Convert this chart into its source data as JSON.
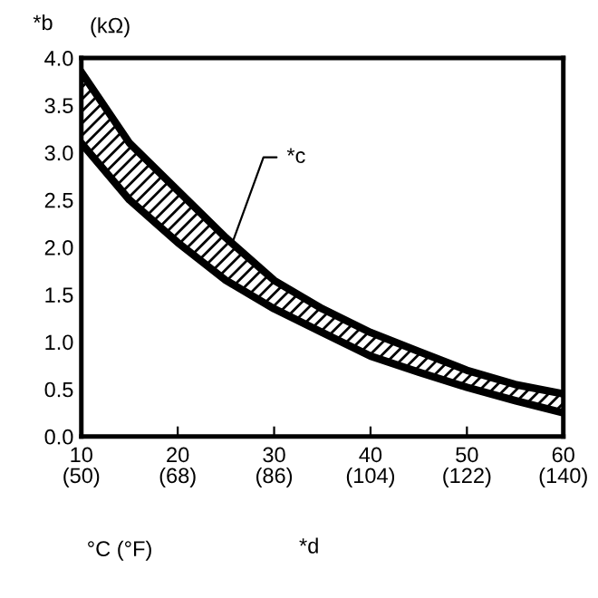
{
  "chart_data": {
    "type": "line",
    "x": [
      10,
      15,
      20,
      25,
      30,
      35,
      40,
      45,
      50,
      55,
      60
    ],
    "series": [
      {
        "color": "#000000",
        "values": [
          3.85,
          3.1,
          2.6,
          2.1,
          1.65,
          1.35,
          1.1,
          0.9,
          0.7,
          0.55,
          0.45
        ],
        "lower": [
          3.1,
          2.5,
          2.05,
          1.65,
          1.35,
          1.1,
          0.85,
          0.68,
          0.52,
          0.38,
          0.25
        ],
        "upper": [
          3.85,
          3.1,
          2.6,
          2.1,
          1.65,
          1.35,
          1.1,
          0.9,
          0.7,
          0.55,
          0.45
        ]
      },
      {
        "color": "#000000",
        "values": [
          3.1,
          2.5,
          2.05,
          1.65,
          1.35,
          1.1,
          0.85,
          0.68,
          0.52,
          0.38,
          0.25
        ]
      }
    ],
    "xlabel": "°C (°F)",
    "ylabel": "(kΩ)",
    "annotations": [
      "*b",
      {
        "text": "*c",
        "x": 25.5,
        "y": 2.0
      },
      "*d"
    ],
    "xlim": [
      10,
      60
    ],
    "ylim": [
      0,
      4.0
    ],
    "xticks": [
      10,
      20,
      30,
      40,
      50,
      60
    ],
    "x2lim": [
      50,
      140
    ],
    "x2ticks": [
      {
        "value": 50,
        "label": "(50)"
      },
      {
        "value": 68,
        "label": "(68)"
      },
      {
        "value": 86,
        "label": "(86)"
      },
      {
        "value": 104,
        "label": "(104)"
      },
      {
        "value": 122,
        "label": "(122)"
      },
      {
        "value": 140,
        "label": "(140)"
      }
    ],
    "yticks": [
      {
        "value": 0,
        "label": "0.0"
      },
      {
        "value": 0.5,
        "label": "0.5"
      },
      {
        "value": 1.0,
        "label": "1.0"
      },
      {
        "value": 1.5,
        "label": "1.5"
      },
      {
        "value": 2.0,
        "label": "2.0"
      },
      {
        "value": 2.5,
        "label": "2.5"
      },
      {
        "value": 3.0,
        "label": "3.0"
      },
      {
        "value": 3.5,
        "label": "3.5"
      },
      {
        "value": 4.0,
        "label": "4.0"
      }
    ],
    "grid": false,
    "legend": false,
    "line_style": "solid",
    "marker": "none"
  }
}
